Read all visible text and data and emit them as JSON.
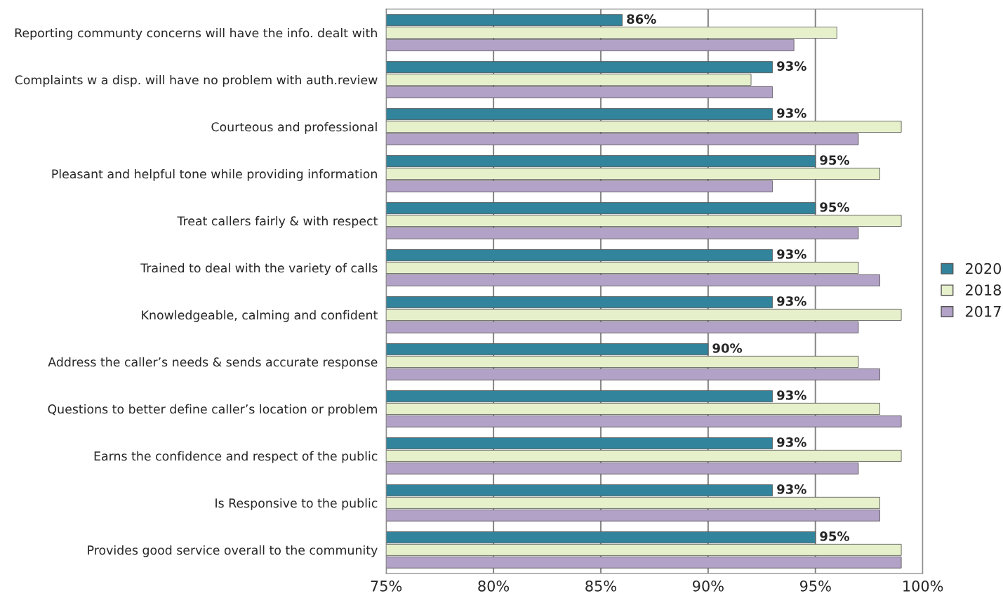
{
  "chart_data": {
    "type": "bar",
    "orientation": "horizontal",
    "categories": [
      "Reporting communty concerns will have the info. dealt with",
      "Complaints w a disp. will have no problem with auth.review",
      "Courteous and professional",
      "Pleasant and helpful tone while providing information",
      "Treat callers fairly & with respect",
      "Trained to deal with the variety of calls",
      "Knowledgeable, calming and confident",
      "Address the caller’s needs & sends accurate response",
      "Questions to better define caller’s location or problem",
      "Earns the confidence and respect of the public",
      "Is Responsive to the public",
      "Provides good service overall to the community"
    ],
    "series": [
      {
        "name": "2020",
        "color": "#31849b",
        "values": [
          86,
          93,
          93,
          95,
          95,
          93,
          93,
          90,
          93,
          93,
          93,
          95
        ],
        "value_labels": [
          "86%",
          "93%",
          "93%",
          "95%",
          "95%",
          "93%",
          "93%",
          "90%",
          "93%",
          "93%",
          "93%",
          "95%"
        ]
      },
      {
        "name": "2018",
        "color": "#e6f1cc",
        "values": [
          96,
          92,
          99,
          98,
          99,
          97,
          99,
          97,
          98,
          99,
          98,
          99
        ]
      },
      {
        "name": "2017",
        "color": "#b3a2c7",
        "values": [
          94,
          93,
          97,
          93,
          97,
          98,
          97,
          98,
          99,
          97,
          98,
          99
        ]
      }
    ],
    "xlim": [
      75,
      100
    ],
    "xticks": [
      {
        "value": 75,
        "label": "75%"
      },
      {
        "value": 80,
        "label": "80%"
      },
      {
        "value": 85,
        "label": "85%"
      },
      {
        "value": 90,
        "label": "90%"
      },
      {
        "value": 95,
        "label": "95%"
      },
      {
        "value": 100,
        "label": "100%"
      }
    ],
    "grid": "x",
    "legend": "right"
  }
}
